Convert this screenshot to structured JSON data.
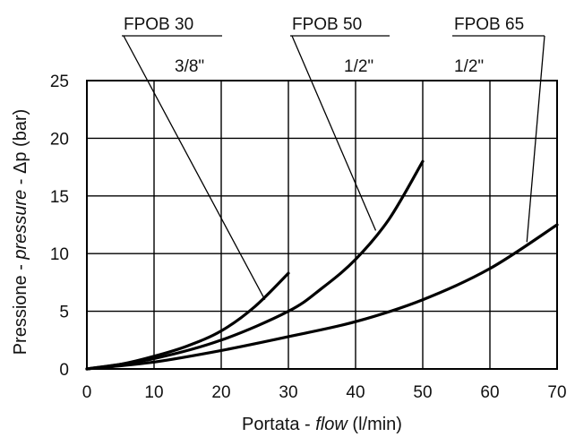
{
  "chart_data": {
    "type": "line",
    "title": "",
    "xlabel": {
      "pre": "Portata - ",
      "italic": "flow",
      "post": " (l/min)"
    },
    "ylabel": {
      "pre": "Pressione - ",
      "italic": "pressure",
      "post": " - Δp (bar)"
    },
    "xlim": [
      0,
      70
    ],
    "ylim": [
      0,
      25
    ],
    "xticks": [
      "0",
      "10",
      "20",
      "30",
      "40",
      "50",
      "60",
      "70"
    ],
    "yticks": [
      "0",
      "5",
      "10",
      "15",
      "20",
      "25"
    ],
    "xtick_values": [
      0,
      10,
      20,
      30,
      40,
      50,
      60,
      70
    ],
    "ytick_values": [
      0,
      5,
      10,
      15,
      20,
      25
    ],
    "grid": true,
    "series": [
      {
        "name": "FPOB 30",
        "size": "3/8\"",
        "x": [
          0,
          5,
          10,
          15,
          20,
          25,
          30
        ],
        "y": [
          0,
          0.4,
          1.1,
          2.0,
          3.3,
          5.4,
          8.3
        ],
        "leader_to": [
          26.5,
          6.0
        ]
      },
      {
        "name": "FPOB 50",
        "size": "1/2\"",
        "x": [
          0,
          10,
          20,
          30,
          35,
          40,
          45,
          50
        ],
        "y": [
          0,
          0.9,
          2.5,
          5.0,
          7.0,
          9.5,
          13.0,
          18.0
        ],
        "leader_to": [
          43.0,
          12.0
        ]
      },
      {
        "name": "FPOB 65",
        "size": "1/2\"",
        "x": [
          0,
          10,
          20,
          30,
          40,
          50,
          60,
          70
        ],
        "y": [
          0,
          0.6,
          1.6,
          2.8,
          4.1,
          6.0,
          8.7,
          12.5
        ],
        "leader_to": [
          65.5,
          11.0
        ]
      }
    ]
  }
}
